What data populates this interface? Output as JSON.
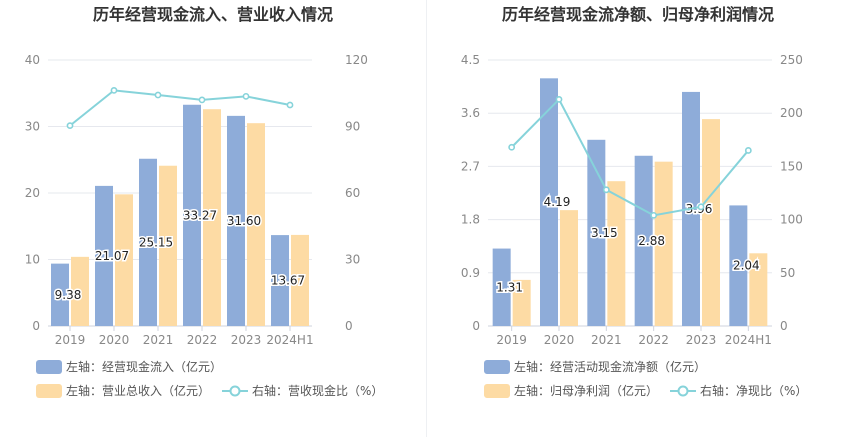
{
  "chart_data": [
    {
      "type": "bar",
      "title": "历年经营现金流入、营业收入情况",
      "categories": [
        "2019",
        "2020",
        "2021",
        "2022",
        "2023",
        "2024H1"
      ],
      "y_left": {
        "ticks": [
          "0",
          "10",
          "20",
          "30",
          "40"
        ],
        "range": [
          0,
          40
        ]
      },
      "y_right": {
        "ticks": [
          "0",
          "30",
          "60",
          "90",
          "120"
        ],
        "range": [
          0,
          120
        ]
      },
      "grid": true,
      "legend_position": "bottom-left",
      "series": [
        {
          "name": "左轴：经营现金流入（亿元）",
          "kind": "bar",
          "axis": "left",
          "color": "#8eacd9",
          "values": [
            9.38,
            21.07,
            25.15,
            33.27,
            31.6,
            13.67
          ],
          "labels": [
            "9.38",
            "21.07",
            "25.15",
            "33.27",
            "31.60",
            "13.67"
          ]
        },
        {
          "name": "左轴：营业总收入（亿元）",
          "kind": "bar",
          "axis": "left",
          "color": "#fddba4",
          "values": [
            10.4,
            19.8,
            24.1,
            32.6,
            30.5,
            13.7
          ]
        },
        {
          "name": "右轴：营收现金比（%）",
          "kind": "line",
          "axis": "right",
          "color": "#86d3da",
          "values": [
            90.4,
            106.3,
            104.2,
            102.0,
            103.6,
            99.7
          ]
        }
      ]
    },
    {
      "type": "bar",
      "title": "历年经营现金流净额、归母净利润情况",
      "categories": [
        "2019",
        "2020",
        "2021",
        "2022",
        "2023",
        "2024H1"
      ],
      "y_left": {
        "ticks": [
          "0",
          "0.9",
          "1.8",
          "2.7",
          "3.6",
          "4.5"
        ],
        "range": [
          0,
          4.5
        ]
      },
      "y_right": {
        "ticks": [
          "0",
          "50",
          "100",
          "150",
          "200",
          "250"
        ],
        "range": [
          0,
          250
        ]
      },
      "grid": true,
      "legend_position": "bottom-left",
      "series": [
        {
          "name": "左轴：经营活动现金流净额（亿元）",
          "kind": "bar",
          "axis": "left",
          "color": "#8eacd9",
          "values": [
            1.31,
            4.19,
            3.15,
            2.88,
            3.96,
            2.04
          ],
          "labels": [
            "1.31",
            "4.19",
            "3.15",
            "2.88",
            "3.96",
            "2.04"
          ]
        },
        {
          "name": "左轴：归母净利润（亿元）",
          "kind": "bar",
          "axis": "left",
          "color": "#fddba4",
          "values": [
            0.78,
            1.96,
            2.45,
            2.78,
            3.5,
            1.23
          ]
        },
        {
          "name": "右轴：净现比（%）",
          "kind": "line",
          "axis": "right",
          "color": "#86d3da",
          "values": [
            168,
            213,
            128,
            104,
            112,
            165
          ]
        }
      ]
    }
  ]
}
